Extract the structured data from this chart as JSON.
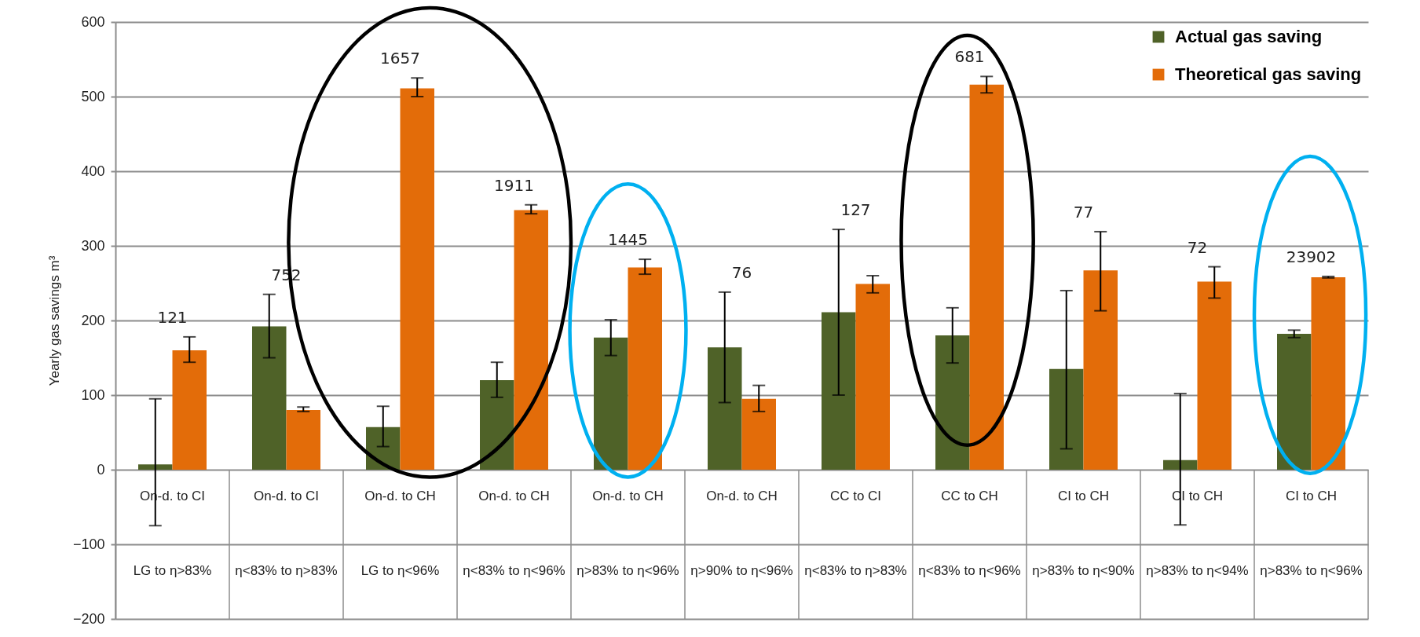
{
  "chart_data": {
    "type": "bar",
    "ylabel": "Yearly gas savings m³",
    "categories": [
      "On-d. to CI\nLG to η>83%",
      "On-d. to CI\nη<83% to η>83%",
      "On-d. to CH\nLG to η<96%",
      "On-d. to CH\nη<83% to η<96%",
      "On-d. to CH\nη>83% to η<96%",
      "On-d. to CH\nη>90% to η<96%",
      "CC to CI\nη<83% to η>83%",
      "CC to CH\nη<83% to η<96%",
      "CI to CH\nη>83% to η<90%",
      "CI to CH\nη>83% to η<94%",
      "CI to CH\nη>83% to η<96%"
    ],
    "series": [
      {
        "name": "Actual gas saving",
        "color": "#4f6228",
        "values": [
          7,
          192,
          57,
          120,
          177,
          164,
          211,
          180,
          135,
          13,
          182
        ],
        "errors": [
          [
            -75,
            95
          ],
          [
            150,
            235
          ],
          [
            31,
            85
          ],
          [
            97,
            144
          ],
          [
            153,
            201
          ],
          [
            90,
            238
          ],
          [
            100,
            322
          ],
          [
            143,
            217
          ],
          [
            28,
            240
          ],
          [
            -74,
            102
          ],
          [
            177,
            187
          ]
        ]
      },
      {
        "name": "Theoretical gas saving",
        "color": "#e36c09",
        "values": [
          160,
          80,
          511,
          348,
          271,
          95,
          249,
          516,
          267,
          252,
          258
        ],
        "errors": [
          [
            144,
            178
          ],
          [
            78,
            84
          ],
          [
            500,
            525
          ],
          [
            343,
            355
          ],
          [
            262,
            282
          ],
          [
            78,
            113
          ],
          [
            237,
            260
          ],
          [
            505,
            527
          ],
          [
            213,
            319
          ],
          [
            230,
            272
          ],
          [
            257,
            259
          ]
        ]
      }
    ],
    "ylim": [
      -200,
      600
    ],
    "yticks": [
      -200,
      -100,
      0,
      100,
      200,
      300,
      400,
      500,
      600
    ],
    "grid": "y",
    "legend": "top right",
    "annotations": [
      "121",
      "752",
      "1657",
      "1911",
      "1445",
      "76",
      "127",
      "681",
      "77",
      "72",
      "23902"
    ]
  }
}
